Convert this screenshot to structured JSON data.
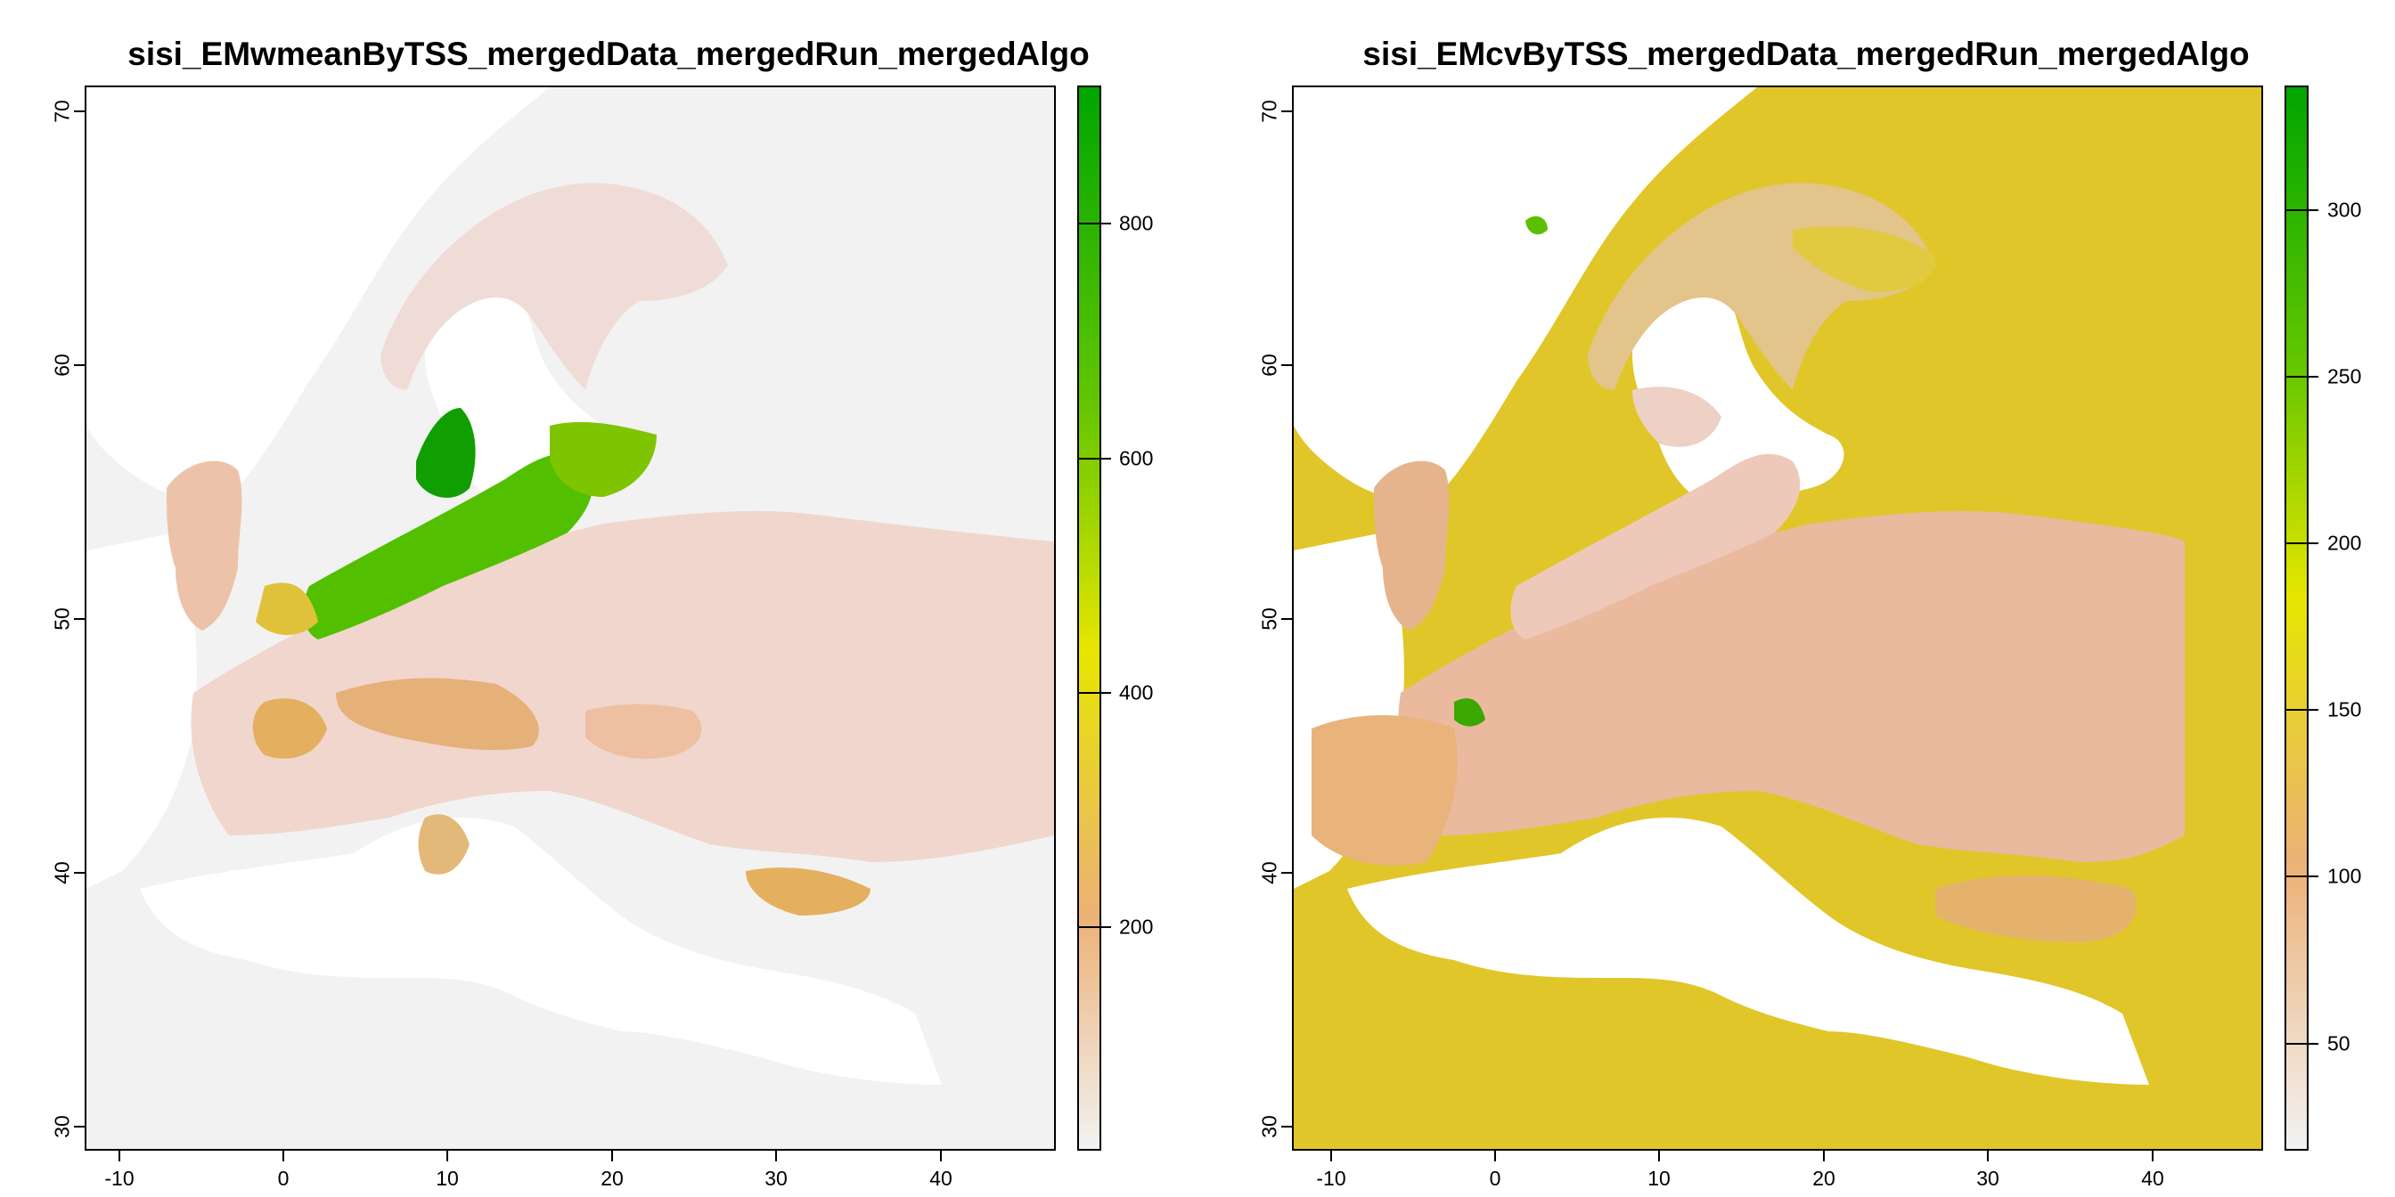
{
  "maps": [
    {
      "title": "sisi_EMwmeanByTSS_mergedData_mergedRun_mergedAlgo",
      "x_ticks": [
        "-10",
        "0",
        "10",
        "20",
        "30",
        "40"
      ],
      "y_ticks": [
        "30",
        "40",
        "50",
        "60",
        "70"
      ],
      "legend": {
        "ticks": [
          "200",
          "400",
          "600",
          "800"
        ],
        "tick_values": [
          200,
          400,
          600,
          800
        ],
        "range": [
          0,
          910
        ],
        "colors": [
          "#f2f2f2",
          "#ecb176",
          "#e6e600",
          "#63c600",
          "#00a600"
        ]
      }
    },
    {
      "title": "sisi_EMcvByTSS_mergedData_mergedRun_mergedAlgo",
      "x_ticks": [
        "-10",
        "0",
        "10",
        "20",
        "30",
        "40"
      ],
      "y_ticks": [
        "30",
        "40",
        "50",
        "60",
        "70"
      ],
      "legend": {
        "ticks": [
          "50",
          "100",
          "150",
          "200",
          "250",
          "300"
        ],
        "tick_values": [
          50,
          100,
          150,
          200,
          250,
          300
        ],
        "range": [
          15,
          335
        ],
        "colors": [
          "#f2f2f2",
          "#ecb176",
          "#e6e600",
          "#63c600",
          "#00a600"
        ]
      }
    }
  ]
}
